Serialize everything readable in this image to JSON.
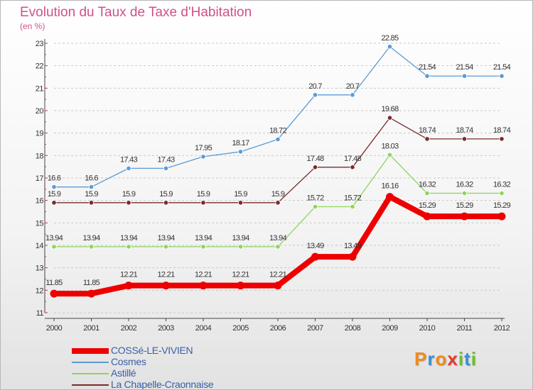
{
  "chart_data": {
    "type": "line",
    "title": "Evolution du Taux de Taxe d'Habitation",
    "unit_label": "(en %)",
    "x": [
      "2000",
      "2001",
      "2002",
      "2003",
      "2004",
      "2005",
      "2006",
      "2007",
      "2008",
      "2009",
      "2010",
      "2011",
      "2012"
    ],
    "y_ticks": [
      "11",
      "12",
      "13",
      "14",
      "15",
      "16",
      "17",
      "18",
      "19",
      "20",
      "21",
      "22",
      "23"
    ],
    "ylim": [
      11,
      23
    ],
    "grid": "dashed horizontal",
    "legend_position": "bottom-left",
    "series": [
      {
        "name": "COSSé-LE-VIVIEN",
        "color": "#ee0000",
        "values": [
          11.85,
          11.85,
          12.21,
          12.21,
          12.21,
          12.21,
          12.21,
          13.49,
          13.49,
          16.16,
          15.29,
          15.29,
          15.29
        ],
        "labels": [
          "11.85",
          "11.85",
          "12.21",
          "12.21",
          "12.21",
          "12.21",
          "12.21",
          "13.49",
          "13.49",
          "16.16",
          "15.29",
          "15.29",
          "15.29"
        ]
      },
      {
        "name": "Cosmes",
        "color": "#5b9bd5",
        "values": [
          16.6,
          16.6,
          17.43,
          17.43,
          17.95,
          18.17,
          18.72,
          20.7,
          20.7,
          22.85,
          21.54,
          21.54,
          21.54
        ],
        "labels": [
          "16.6",
          "16.6",
          "17.43",
          "17.43",
          "17.95",
          "18.17",
          "18.72",
          "20.7",
          "20.7",
          "22.85",
          "21.54",
          "21.54",
          "21.54"
        ]
      },
      {
        "name": "Astillé",
        "color": "#8fd45a",
        "values": [
          13.94,
          13.94,
          13.94,
          13.94,
          13.94,
          13.94,
          13.94,
          15.72,
          15.72,
          18.03,
          16.32,
          16.32,
          16.32
        ],
        "labels": [
          "13.94",
          "13.94",
          "13.94",
          "13.94",
          "13.94",
          "13.94",
          "13.94",
          "15.72",
          "15.72",
          "18.03",
          "16.32",
          "16.32",
          "16.32"
        ]
      },
      {
        "name": "La Chapelle-Craonnaise",
        "color": "#7a2a2a",
        "values": [
          15.9,
          15.9,
          15.9,
          15.9,
          15.9,
          15.9,
          15.9,
          17.48,
          17.48,
          19.68,
          18.74,
          18.74,
          18.74
        ],
        "labels": [
          "15.9",
          "15.9",
          "15.9",
          "15.9",
          "15.9",
          "15.9",
          "15.9",
          "17.48",
          "17.48",
          "19.68",
          "18.74",
          "18.74",
          "18.74"
        ]
      }
    ]
  },
  "logo": {
    "letters": [
      "P",
      "r",
      "o",
      "x",
      "i",
      "t",
      "i"
    ],
    "colors": [
      "#f08a1c",
      "#3a8fd6",
      "#f08a1c",
      "#e33b2e",
      "#6cbf2a",
      "#3a8fd6",
      "#6cbf2a"
    ]
  }
}
